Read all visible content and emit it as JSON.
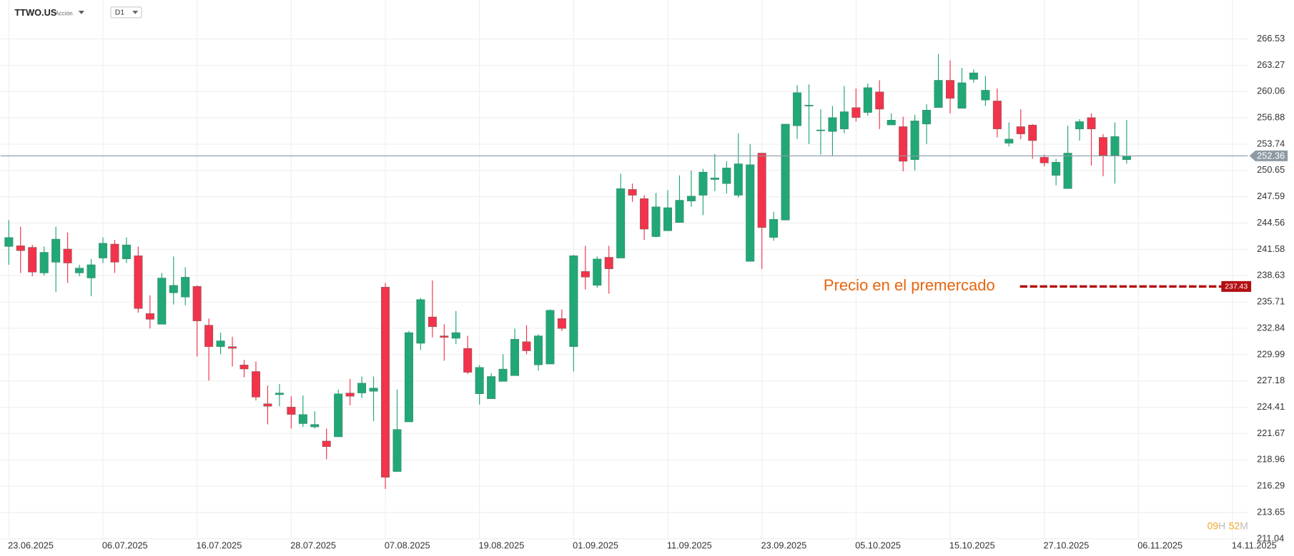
{
  "chart_data": {
    "type": "candlestick",
    "title": "TTWO.US",
    "subtitle": "Acción",
    "timeframe": "D1",
    "log_scale": true,
    "grid": true,
    "up_color": "#22a776",
    "down_color": "#f2334b",
    "ylim": [
      211.04,
      266.53
    ],
    "yticks": [
      266.53,
      263.27,
      260.06,
      256.88,
      253.74,
      250.65,
      247.59,
      244.56,
      241.58,
      238.63,
      235.71,
      232.84,
      229.99,
      227.18,
      224.41,
      221.67,
      218.96,
      216.29,
      213.65,
      211.04
    ],
    "xlim": [
      -0.7,
      105.3
    ],
    "xticks": [
      {
        "value": 0,
        "label": "23.06.2025"
      },
      {
        "value": 8,
        "label": "06.07.2025"
      },
      {
        "value": 16,
        "label": "16.07.2025"
      },
      {
        "value": 24,
        "label": "28.07.2025"
      },
      {
        "value": 32,
        "label": "07.08.2025"
      },
      {
        "value": 40,
        "label": "19.08.2025"
      },
      {
        "value": 48,
        "label": "01.09.2025"
      },
      {
        "value": 56,
        "label": "11.09.2025"
      },
      {
        "value": 64,
        "label": "23.09.2025"
      },
      {
        "value": 72,
        "label": "05.10.2025"
      },
      {
        "value": 80,
        "label": "15.10.2025"
      },
      {
        "value": 88,
        "label": "27.10.2025"
      },
      {
        "value": 96,
        "label": "06.11.2025"
      },
      {
        "value": 104,
        "label": "14.11.2025"
      }
    ],
    "open": [
      241.9,
      241.99,
      241.81,
      238.93,
      240.13,
      241.62,
      238.93,
      238.37,
      240.6,
      242.18,
      240.5,
      240.87,
      234.45,
      233.27,
      236.72,
      236.26,
      237.45,
      233.18,
      230.85,
      230.85,
      228.89,
      228.19,
      224.78,
      225.73,
      224.43,
      222.7,
      222.36,
      220.9,
      221.33,
      225.91,
      225.91,
      226.08,
      237.36,
      217.77,
      222.88,
      231.21,
      234.08,
      232.02,
      231.75,
      230.67,
      225.82,
      225.3,
      227.13,
      227.74,
      231.39,
      228.89,
      228.98,
      233.9,
      230.85,
      239.11,
      237.55,
      240.69,
      240.6,
      248.44,
      247.38,
      243.02,
      243.68,
      244.62,
      247.09,
      247.76,
      249.59,
      249.11,
      247.76,
      240.23,
      252.69,
      242.93,
      244.9,
      255.93,
      258.32,
      255.34,
      255.24,
      255.54,
      258.12,
      257.52,
      260.02,
      256.03,
      255.83,
      251.91,
      256.13,
      258.12,
      261.43,
      258.02,
      261.53,
      259.02,
      258.92,
      253.86,
      255.83,
      256.03,
      252.2,
      250.07,
      248.53,
      255.54,
      256.92,
      254.55,
      252.4,
      251.91
    ],
    "high": [
      244.9,
      244.15,
      242.09,
      241.9,
      244.15,
      243.49,
      239.85,
      240.5,
      242.93,
      242.65,
      242.93,
      241.9,
      236.45,
      238.93,
      240.78,
      239.58,
      237.55,
      233.9,
      232.37,
      231.93,
      229.42,
      229.25,
      226.69,
      226.87,
      225.56,
      225.65,
      224.0,
      222.19,
      226.26,
      227.39,
      227.66,
      227.66,
      237.82,
      226.26,
      232.55,
      236.17,
      238.1,
      233.27,
      234.72,
      232.02,
      228.89,
      228.01,
      230.04,
      232.82,
      233.18,
      232.19,
      234.9,
      234.9,
      240.97,
      241.99,
      240.78,
      241.99,
      250.27,
      249.11,
      247.76,
      248.05,
      248.34,
      250.07,
      250.65,
      250.84,
      252.59,
      251.72,
      255.04,
      253.76,
      252.69,
      245.86,
      256.13,
      260.83,
      260.93,
      257.92,
      258.32,
      260.73,
      260.42,
      261.03,
      261.43,
      257.42,
      257.02,
      257.22,
      258.52,
      264.68,
      263.86,
      262.95,
      262.75,
      261.94,
      260.42,
      256.33,
      257.92,
      256.13,
      252.5,
      252.01,
      255.93,
      256.72,
      257.42,
      254.95,
      256.33,
      256.62
    ],
    "low": [
      239.85,
      238.93,
      238.56,
      238.65,
      236.81,
      237.82,
      238.56,
      236.35,
      240.04,
      238.93,
      240.04,
      234.54,
      232.82,
      233.27,
      235.44,
      235.35,
      229.78,
      227.21,
      230.04,
      228.72,
      227.57,
      225.12,
      222.62,
      224.51,
      222.19,
      222.36,
      222.19,
      219.03,
      221.33,
      224.6,
      225.39,
      222.96,
      216.01,
      217.77,
      222.88,
      230.49,
      231.84,
      229.34,
      231.12,
      227.92,
      224.69,
      225.3,
      227.13,
      227.74,
      230.04,
      228.28,
      228.98,
      232.55,
      228.19,
      237.09,
      237.27,
      236.63,
      240.6,
      247.0,
      242.65,
      242.93,
      243.68,
      244.62,
      246.43,
      245.47,
      248.24,
      247.96,
      247.48,
      240.23,
      239.39,
      242.55,
      244.9,
      254.35,
      253.76,
      252.5,
      252.4,
      255.04,
      256.43,
      257.12,
      255.54,
      256.03,
      250.55,
      250.65,
      253.76,
      258.12,
      257.42,
      258.02,
      261.13,
      258.32,
      254.55,
      253.47,
      254.35,
      252.01,
      251.14,
      248.92,
      248.53,
      254.16,
      251.23,
      249.98,
      249.11,
      251.43
    ],
    "close": [
      242.93,
      241.43,
      239.02,
      241.25,
      242.74,
      240.04,
      239.48,
      239.85,
      242.27,
      240.13,
      242.09,
      234.99,
      233.81,
      238.37,
      237.55,
      238.46,
      233.63,
      230.85,
      231.48,
      230.67,
      228.45,
      225.47,
      224.51,
      225.91,
      223.65,
      223.65,
      222.62,
      220.31,
      225.82,
      225.56,
      226.95,
      226.43,
      217.18,
      222.1,
      232.37,
      235.99,
      233.0,
      231.84,
      232.37,
      228.1,
      228.63,
      227.66,
      228.45,
      231.66,
      230.4,
      232.02,
      234.81,
      232.82,
      240.87,
      238.46,
      240.5,
      239.39,
      248.53,
      247.76,
      243.87,
      246.43,
      246.33,
      247.19,
      247.67,
      250.46,
      249.78,
      250.94,
      251.43,
      251.33,
      244.05,
      245.0,
      256.13,
      259.92,
      258.42,
      255.44,
      256.92,
      257.62,
      256.92,
      260.53,
      257.92,
      256.62,
      251.72,
      256.52,
      257.82,
      261.43,
      259.22,
      261.13,
      262.34,
      260.22,
      255.54,
      254.35,
      254.95,
      254.16,
      251.52,
      251.62,
      252.69,
      256.43,
      255.54,
      252.4,
      254.65,
      252.36
    ],
    "last_price": 252.36,
    "last_price_color": "#8d9aa3",
    "premarket": {
      "label": "Precio en el premercado",
      "value": 237.43,
      "color": "#b30f12",
      "label_color": "#e8650e"
    },
    "countdown": {
      "hours": "09",
      "hours_unit": "H",
      "minutes": "52",
      "minutes_unit": "M"
    }
  }
}
